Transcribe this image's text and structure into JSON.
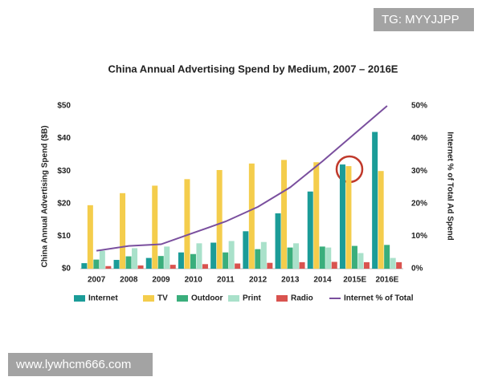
{
  "overlays": {
    "top_label": "TG: MYYJJPP",
    "bottom_label": "www.lywhcm666.com"
  },
  "chart_data": {
    "type": "bar",
    "title": "China Annual Advertising Spend by Medium, 2007 – 2016E",
    "y_label": "China Annual Advertising Spend ($B)",
    "y2_label": "Internet % of Total Ad Spend",
    "categories": [
      "2007",
      "2008",
      "2009",
      "2010",
      "2011",
      "2012",
      "2013",
      "2014",
      "2015E",
      "2016E"
    ],
    "series": [
      {
        "name": "Internet",
        "color": "#1b9c98",
        "values": [
          1.7,
          2.7,
          3.3,
          5.0,
          8.0,
          11.5,
          17.0,
          23.7,
          32.0,
          42.0
        ]
      },
      {
        "name": "TV",
        "color": "#f4cd4c",
        "values": [
          19.5,
          23.2,
          25.5,
          27.5,
          30.3,
          32.3,
          33.4,
          32.7,
          31.5,
          30.0
        ]
      },
      {
        "name": "Outdoor",
        "color": "#3aae7c",
        "values": [
          2.8,
          3.8,
          3.9,
          4.5,
          5.0,
          6.0,
          6.5,
          6.8,
          7.0,
          7.3
        ]
      },
      {
        "name": "Print",
        "color": "#a9e1ca",
        "values": [
          5.5,
          6.3,
          6.8,
          7.8,
          8.5,
          8.2,
          7.8,
          6.5,
          4.8,
          3.3
        ]
      },
      {
        "name": "Radio",
        "color": "#d9534f",
        "values": [
          0.8,
          1.0,
          1.2,
          1.4,
          1.6,
          1.8,
          2.0,
          2.1,
          2.0,
          2.0
        ]
      },
      {
        "name": "Internet % of Total",
        "type": "line",
        "axis": "y2",
        "color": "#7a4f9e",
        "values": [
          5.5,
          7.0,
          7.5,
          11.0,
          14.5,
          19.0,
          25.0,
          33.0,
          41.5,
          50.0
        ]
      }
    ],
    "ylim": [
      0,
      50
    ],
    "yticks": [
      {
        "value": 0,
        "label": "$0"
      },
      {
        "value": 10,
        "label": "$10"
      },
      {
        "value": 20,
        "label": "$20"
      },
      {
        "value": 30,
        "label": "$30"
      },
      {
        "value": 40,
        "label": "$40"
      },
      {
        "value": 50,
        "label": "$50"
      }
    ],
    "y2lim": [
      0,
      50
    ],
    "y2ticks": [
      {
        "value": 0,
        "label": "0%"
      },
      {
        "value": 10,
        "label": "10%"
      },
      {
        "value": 20,
        "label": "20%"
      },
      {
        "value": 30,
        "label": "30%"
      },
      {
        "value": 40,
        "label": "40%"
      },
      {
        "value": 50,
        "label": "50%"
      }
    ],
    "grid": false,
    "legend": "bottom"
  }
}
